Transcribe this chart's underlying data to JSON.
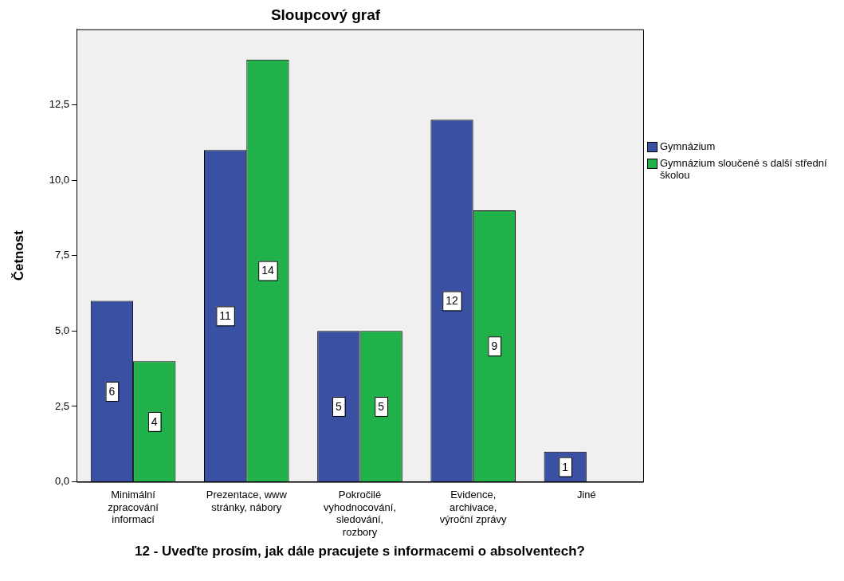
{
  "chart_data": {
    "type": "bar",
    "title": "Sloupcový graf",
    "xlabel": "12 - Uveďte prosím, jak dále pracujete s informacemi o absolventech?",
    "ylabel": "Četnost",
    "categories": [
      "Minimální zpracování informací",
      "Prezentace, www stránky, nábory",
      "Pokročilé vyhodnocování, sledování, rozbory",
      "Evidence, archivace, výroční zprávy",
      "Jiné"
    ],
    "series": [
      {
        "name": "Gymnázium",
        "color": "#3a51a3",
        "values": [
          6,
          11,
          5,
          12,
          1
        ]
      },
      {
        "name": "Gymnázium sloučené s další střední školou",
        "color": "#21b14b",
        "values": [
          4,
          14,
          5,
          9,
          null
        ]
      }
    ],
    "ylim": [
      0,
      15
    ],
    "yticks": [
      {
        "value": 0,
        "label": "0,0"
      },
      {
        "value": 2.5,
        "label": "2,5"
      },
      {
        "value": 5,
        "label": "5,0"
      },
      {
        "value": 7.5,
        "label": "7,5"
      },
      {
        "value": 10,
        "label": "10,0"
      },
      {
        "value": 12.5,
        "label": "12,5"
      }
    ],
    "data_labels": true,
    "legend": "right",
    "grid": false
  }
}
